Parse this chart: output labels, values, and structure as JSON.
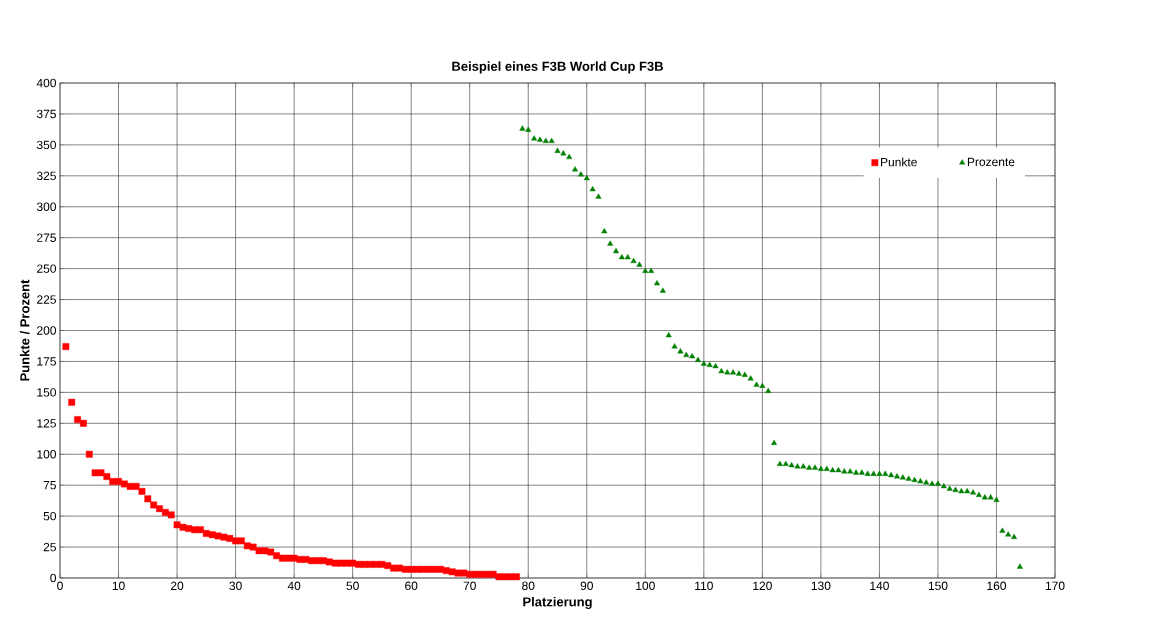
{
  "chart_data": {
    "type": "scatter",
    "title": "Beispiel eines F3B World Cup F3B",
    "xlabel": "Platzierung",
    "ylabel": "Punkte / Prozent",
    "xlim": [
      0,
      170
    ],
    "xticks": [
      0,
      10,
      20,
      30,
      40,
      50,
      60,
      70,
      80,
      90,
      100,
      110,
      120,
      130,
      140,
      150,
      160,
      170
    ],
    "ylim": [
      0,
      400
    ],
    "yticks": [
      0,
      25,
      50,
      75,
      100,
      125,
      150,
      175,
      200,
      225,
      250,
      275,
      300,
      325,
      350,
      375,
      400
    ],
    "grid": true,
    "legend": "top right",
    "series": [
      {
        "name": "Punkte",
        "color": "#ff0000",
        "marker": "square",
        "x": [
          1,
          2,
          3,
          4,
          5,
          6,
          7,
          8,
          9,
          10,
          11,
          12,
          13,
          14,
          15,
          16,
          17,
          18,
          19,
          20,
          21,
          22,
          23,
          24,
          25,
          26,
          27,
          28,
          29,
          30,
          31,
          32,
          33,
          34,
          35,
          36,
          37,
          38,
          39,
          40,
          41,
          42,
          43,
          44,
          45,
          46,
          47,
          48,
          49,
          50,
          51,
          52,
          53,
          54,
          55,
          56,
          57,
          58,
          59,
          60,
          61,
          62,
          63,
          64,
          65,
          66,
          67,
          68,
          69,
          70,
          71,
          72,
          73,
          74,
          75,
          76,
          77,
          78
        ],
        "values": [
          187,
          142,
          128,
          125,
          100,
          85,
          85,
          82,
          78,
          78,
          76,
          74,
          74,
          70,
          64,
          59,
          56,
          53,
          51,
          43,
          41,
          40,
          39,
          39,
          36,
          35,
          34,
          33,
          32,
          30,
          30,
          26,
          25,
          22,
          22,
          21,
          18,
          16,
          16,
          16,
          15,
          15,
          14,
          14,
          14,
          13,
          12,
          12,
          12,
          12,
          11,
          11,
          11,
          11,
          11,
          10,
          8,
          8,
          7,
          7,
          7,
          7,
          7,
          7,
          7,
          6,
          5,
          4,
          4,
          3,
          3,
          3,
          3,
          3,
          1,
          1,
          1,
          1
        ]
      },
      {
        "name": "Prozente",
        "color": "#008000",
        "marker": "triangle",
        "x": [
          79,
          80,
          81,
          82,
          83,
          84,
          85,
          86,
          87,
          88,
          89,
          90,
          91,
          92,
          93,
          94,
          95,
          96,
          97,
          98,
          99,
          100,
          101,
          102,
          103,
          104,
          105,
          106,
          107,
          108,
          109,
          110,
          111,
          112,
          113,
          114,
          115,
          116,
          117,
          118,
          119,
          120,
          121,
          122,
          123,
          124,
          125,
          126,
          127,
          128,
          129,
          130,
          131,
          132,
          133,
          134,
          135,
          136,
          137,
          138,
          139,
          140,
          141,
          142,
          143,
          144,
          145,
          146,
          147,
          148,
          149,
          150,
          151,
          152,
          153,
          154,
          155,
          156,
          157,
          158,
          159,
          160,
          161,
          162,
          163,
          164
        ],
        "values": [
          363,
          362,
          355,
          354,
          353,
          353,
          345,
          343,
          340,
          330,
          326,
          323,
          314,
          308,
          280,
          270,
          264,
          259,
          259,
          256,
          253,
          248,
          248,
          238,
          232,
          196,
          187,
          183,
          180,
          179,
          176,
          173,
          172,
          171,
          167,
          166,
          166,
          165,
          164,
          161,
          156,
          155,
          151,
          109,
          92,
          92,
          91,
          90,
          90,
          89,
          89,
          88,
          88,
          87,
          87,
          86,
          86,
          85,
          85,
          84,
          84,
          84,
          84,
          83,
          82,
          81,
          80,
          79,
          78,
          77,
          76,
          76,
          74,
          72,
          71,
          70,
          70,
          69,
          67,
          65,
          65,
          63,
          38,
          35,
          33,
          9
        ]
      }
    ]
  }
}
